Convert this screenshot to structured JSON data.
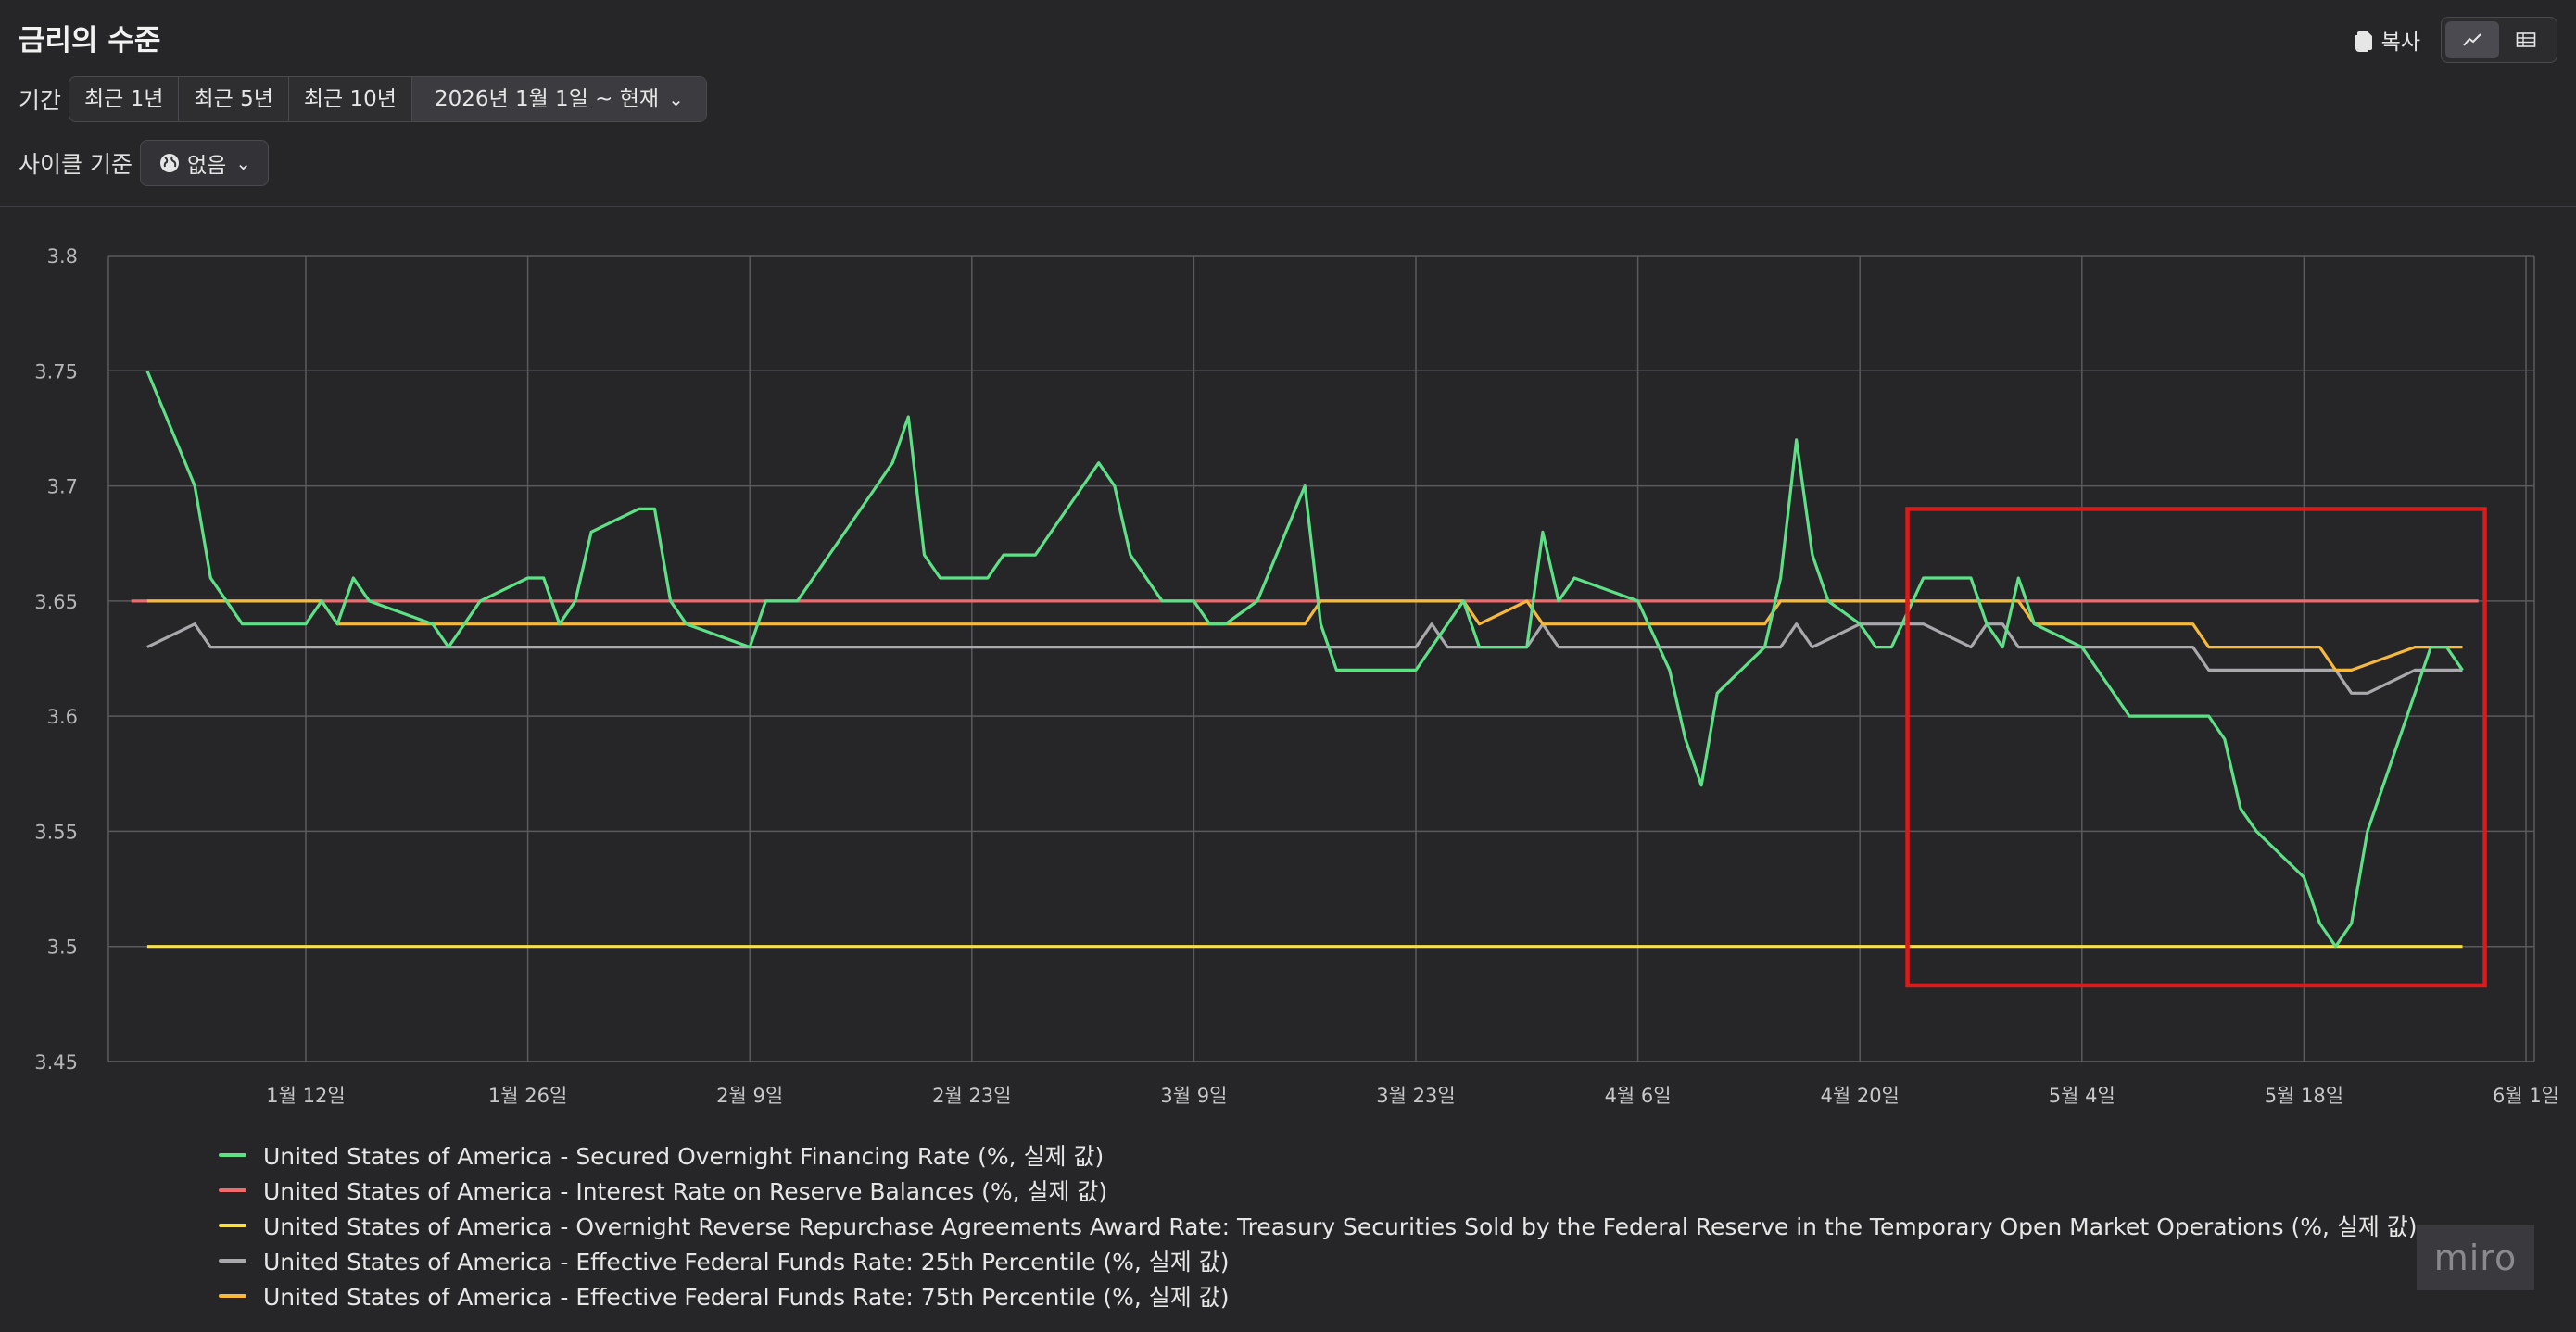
{
  "header": {
    "title": "금리의 수준",
    "copy_label": "복사",
    "view_toggle": [
      "line-chart-icon",
      "table-icon"
    ]
  },
  "period": {
    "label": "기간",
    "options": [
      "최근 1년",
      "최근 5년",
      "최근 10년"
    ],
    "selected": "2026년 1월 1일 ~ 현재"
  },
  "cycle": {
    "label": "사이클 기준",
    "value": "없음"
  },
  "watermark": "miro",
  "colors": {
    "sofr": "#5ee087",
    "iorb": "#f06a6e",
    "onrrp": "#f7e04d",
    "p25": "#a8a8ad",
    "p75": "#f6b93b",
    "highlight": "#e01818"
  },
  "chart_data": {
    "type": "line",
    "ylim": [
      3.45,
      3.8
    ],
    "yticks": [
      "3.45",
      "3.5",
      "3.55",
      "3.6",
      "3.65",
      "3.7",
      "3.75",
      "3.8"
    ],
    "xticks": [
      "1월 12일",
      "1월 26일",
      "2월 9일",
      "2월 23일",
      "3월 9일",
      "3월 23일",
      "4월 6일",
      "4월 20일",
      "5월 4일",
      "5월 18일",
      "6월 1일"
    ],
    "x_start": "2026-01-02",
    "x_end": "2026-05-28",
    "series": [
      {
        "name": "United States of America - Secured Overnight Financing Rate (%, 실제 값)",
        "color": "#5ee087",
        "points": [
          [
            "2026-01-02",
            3.75
          ],
          [
            "2026-01-05",
            3.7
          ],
          [
            "2026-01-06",
            3.66
          ],
          [
            "2026-01-08",
            3.64
          ],
          [
            "2026-01-12",
            3.64
          ],
          [
            "2026-01-13",
            3.65
          ],
          [
            "2026-01-14",
            3.64
          ],
          [
            "2026-01-15",
            3.66
          ],
          [
            "2026-01-16",
            3.65
          ],
          [
            "2026-01-20",
            3.64
          ],
          [
            "2026-01-21",
            3.63
          ],
          [
            "2026-01-23",
            3.65
          ],
          [
            "2026-01-26",
            3.66
          ],
          [
            "2026-01-27",
            3.66
          ],
          [
            "2026-01-28",
            3.64
          ],
          [
            "2026-01-29",
            3.65
          ],
          [
            "2026-01-30",
            3.68
          ],
          [
            "2026-02-02",
            3.69
          ],
          [
            "2026-02-03",
            3.69
          ],
          [
            "2026-02-04",
            3.65
          ],
          [
            "2026-02-05",
            3.64
          ],
          [
            "2026-02-09",
            3.63
          ],
          [
            "2026-02-10",
            3.65
          ],
          [
            "2026-02-12",
            3.65
          ],
          [
            "2026-02-13",
            3.66
          ],
          [
            "2026-02-17",
            3.7
          ],
          [
            "2026-02-18",
            3.71
          ],
          [
            "2026-02-19",
            3.73
          ],
          [
            "2026-02-20",
            3.67
          ],
          [
            "2026-02-21",
            3.66
          ],
          [
            "2026-02-24",
            3.66
          ],
          [
            "2026-02-25",
            3.67
          ],
          [
            "2026-02-27",
            3.67
          ],
          [
            "2026-03-02",
            3.7
          ],
          [
            "2026-03-03",
            3.71
          ],
          [
            "2026-03-04",
            3.7
          ],
          [
            "2026-03-05",
            3.67
          ],
          [
            "2026-03-07",
            3.65
          ],
          [
            "2026-03-09",
            3.65
          ],
          [
            "2026-03-10",
            3.64
          ],
          [
            "2026-03-11",
            3.64
          ],
          [
            "2026-03-13",
            3.65
          ],
          [
            "2026-03-16",
            3.7
          ],
          [
            "2026-03-17",
            3.64
          ],
          [
            "2026-03-18",
            3.62
          ],
          [
            "2026-03-23",
            3.62
          ],
          [
            "2026-03-25",
            3.64
          ],
          [
            "2026-03-26",
            3.65
          ],
          [
            "2026-03-27",
            3.63
          ],
          [
            "2026-03-30",
            3.63
          ],
          [
            "2026-03-31",
            3.68
          ],
          [
            "2026-04-01",
            3.65
          ],
          [
            "2026-04-02",
            3.66
          ],
          [
            "2026-04-06",
            3.65
          ],
          [
            "2026-04-08",
            3.62
          ],
          [
            "2026-04-09",
            3.59
          ],
          [
            "2026-04-10",
            3.57
          ],
          [
            "2026-04-11",
            3.61
          ],
          [
            "2026-04-14",
            3.63
          ],
          [
            "2026-04-15",
            3.66
          ],
          [
            "2026-04-16",
            3.72
          ],
          [
            "2026-04-17",
            3.67
          ],
          [
            "2026-04-18",
            3.65
          ],
          [
            "2026-04-20",
            3.64
          ],
          [
            "2026-04-21",
            3.63
          ],
          [
            "2026-04-22",
            3.63
          ],
          [
            "2026-04-24",
            3.66
          ],
          [
            "2026-04-27",
            3.66
          ],
          [
            "2026-04-28",
            3.64
          ],
          [
            "2026-04-29",
            3.63
          ],
          [
            "2026-04-30",
            3.66
          ],
          [
            "2026-05-01",
            3.64
          ],
          [
            "2026-05-04",
            3.63
          ],
          [
            "2026-05-07",
            3.6
          ],
          [
            "2026-05-12",
            3.6
          ],
          [
            "2026-05-13",
            3.59
          ],
          [
            "2026-05-14",
            3.56
          ],
          [
            "2026-05-15",
            3.55
          ],
          [
            "2026-05-18",
            3.53
          ],
          [
            "2026-05-19",
            3.51
          ],
          [
            "2026-05-20",
            3.5
          ],
          [
            "2026-05-21",
            3.51
          ],
          [
            "2026-05-22",
            3.55
          ],
          [
            "2026-05-26",
            3.63
          ],
          [
            "2026-05-27",
            3.63
          ],
          [
            "2026-05-28",
            3.62
          ]
        ]
      },
      {
        "name": "United States of America - Interest Rate on Reserve Balances (%, 실제 값)",
        "color": "#f06a6e",
        "points": [
          [
            "2026-01-01",
            3.65
          ],
          [
            "2026-05-29",
            3.65
          ]
        ]
      },
      {
        "name": "United States of America - Overnight Reverse Repurchase Agreements Award Rate: Treasury Securities Sold by the Federal Reserve in the Temporary Open Market Operations (%, 실제 값)",
        "color": "#f7e04d",
        "points": [
          [
            "2026-01-02",
            3.5
          ],
          [
            "2026-05-28",
            3.5
          ]
        ]
      },
      {
        "name": "United States of America - Effective Federal Funds Rate: 25th Percentile (%, 실제 값)",
        "color": "#a8a8ad",
        "points": [
          [
            "2026-01-02",
            3.63
          ],
          [
            "2026-01-05",
            3.64
          ],
          [
            "2026-01-06",
            3.63
          ],
          [
            "2026-03-23",
            3.63
          ],
          [
            "2026-03-24",
            3.64
          ],
          [
            "2026-03-25",
            3.63
          ],
          [
            "2026-03-30",
            3.63
          ],
          [
            "2026-03-31",
            3.64
          ],
          [
            "2026-04-01",
            3.63
          ],
          [
            "2026-04-15",
            3.63
          ],
          [
            "2026-04-16",
            3.64
          ],
          [
            "2026-04-17",
            3.63
          ],
          [
            "2026-04-20",
            3.64
          ],
          [
            "2026-04-24",
            3.64
          ],
          [
            "2026-04-27",
            3.63
          ],
          [
            "2026-04-28",
            3.64
          ],
          [
            "2026-04-29",
            3.64
          ],
          [
            "2026-04-30",
            3.63
          ],
          [
            "2026-05-11",
            3.63
          ],
          [
            "2026-05-12",
            3.62
          ],
          [
            "2026-05-20",
            3.62
          ],
          [
            "2026-05-21",
            3.61
          ],
          [
            "2026-05-22",
            3.61
          ],
          [
            "2026-05-25",
            3.62
          ],
          [
            "2026-05-28",
            3.62
          ]
        ]
      },
      {
        "name": "United States of America - Effective Federal Funds Rate: 75th Percentile (%, 실제 값)",
        "color": "#f6b93b",
        "points": [
          [
            "2026-01-02",
            3.65
          ],
          [
            "2026-01-13",
            3.65
          ],
          [
            "2026-01-14",
            3.64
          ],
          [
            "2026-03-16",
            3.64
          ],
          [
            "2026-03-17",
            3.65
          ],
          [
            "2026-03-26",
            3.65
          ],
          [
            "2026-03-27",
            3.64
          ],
          [
            "2026-03-30",
            3.65
          ],
          [
            "2026-03-31",
            3.64
          ],
          [
            "2026-04-14",
            3.64
          ],
          [
            "2026-04-15",
            3.65
          ],
          [
            "2026-04-30",
            3.65
          ],
          [
            "2026-05-01",
            3.64
          ],
          [
            "2026-05-11",
            3.64
          ],
          [
            "2026-05-12",
            3.63
          ],
          [
            "2026-05-19",
            3.63
          ],
          [
            "2026-05-20",
            3.62
          ],
          [
            "2026-05-21",
            3.62
          ],
          [
            "2026-05-25",
            3.63
          ],
          [
            "2026-05-28",
            3.63
          ]
        ]
      }
    ],
    "highlight_box": {
      "x_from": "2026-04-23",
      "x_to": "2026-05-28",
      "y_from": 3.483,
      "y_to": 3.69
    }
  }
}
